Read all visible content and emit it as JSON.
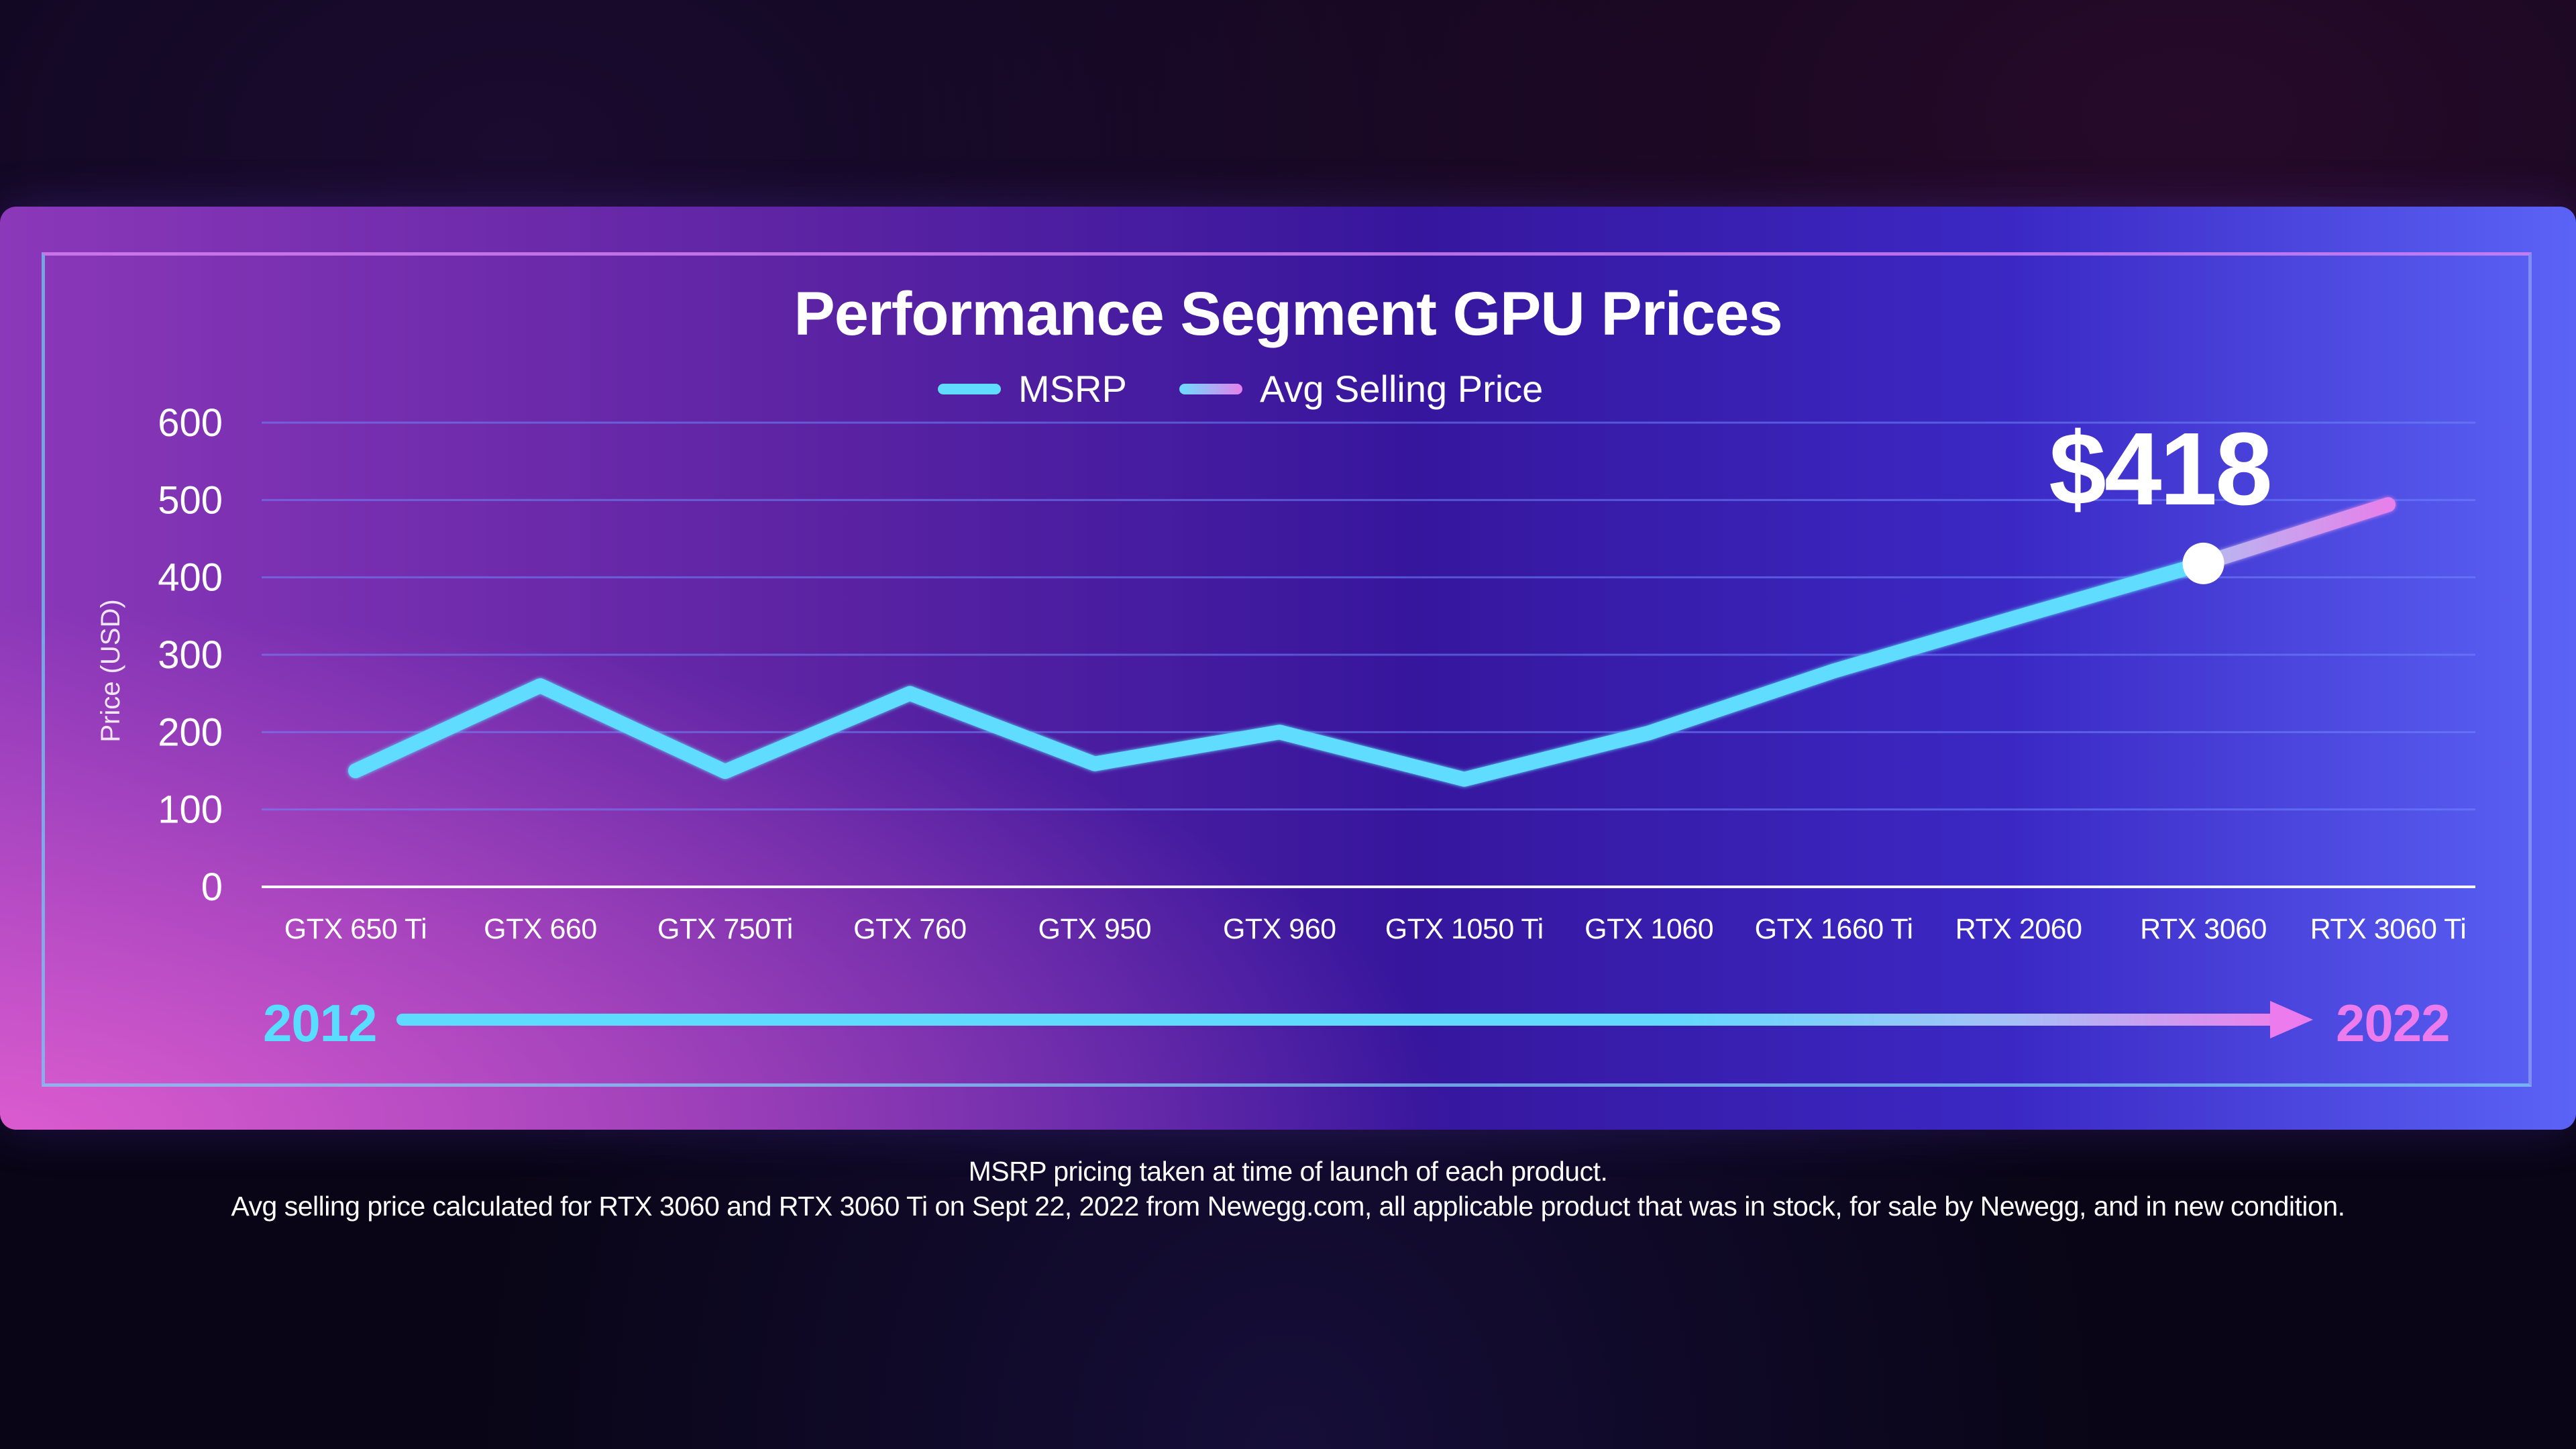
{
  "chart_data": {
    "type": "line",
    "title": "Performance Segment GPU Prices",
    "xlabel": "",
    "ylabel": "Price (USD)",
    "categories": [
      "GTX 650 Ti",
      "GTX 660",
      "GTX 750Ti",
      "GTX 760",
      "GTX 950",
      "GTX 960",
      "GTX 1050 Ti",
      "GTX 1060",
      "GTX 1660 Ti",
      "RTX 2060",
      "RTX 3060",
      "RTX 3060 Ti"
    ],
    "y_ticks": [
      0,
      100,
      200,
      300,
      400,
      500,
      600
    ],
    "ylim": [
      0,
      600
    ],
    "grid": true,
    "legend": [
      {
        "name": "MSRP",
        "color": "#5fdcff"
      },
      {
        "name": "Avg Selling Price",
        "color": "#e680ea"
      }
    ],
    "series": [
      {
        "name": "MSRP",
        "values": [
          150,
          260,
          149,
          250,
          159,
          200,
          139,
          199,
          279,
          349,
          null,
          null
        ]
      },
      {
        "name": "Avg Selling Price",
        "values": [
          null,
          null,
          null,
          null,
          null,
          null,
          null,
          null,
          null,
          null,
          418,
          494
        ]
      }
    ],
    "annotation": {
      "label": "$418",
      "category": "RTX 3060",
      "value": 418
    },
    "timeline": {
      "start": "2012",
      "end": "2022"
    }
  },
  "notes": [
    "MSRP pricing taken at time of launch of each product.",
    "Avg selling price calculated for RTX 3060 and RTX 3060 Ti on Sept 22, 2022 from Newegg.com, all applicable product that was in stock, for sale by Newegg, and in new condition."
  ],
  "colors": {
    "msrp": "#5fdcff",
    "avg_start": "#7ee7ff",
    "avg_end": "#e680ea",
    "grid": "#6f86ff",
    "axis": "#ffffff",
    "label": "#ffffff",
    "timeline_start": "#58dcff",
    "timeline_end": "#ec7ced"
  }
}
